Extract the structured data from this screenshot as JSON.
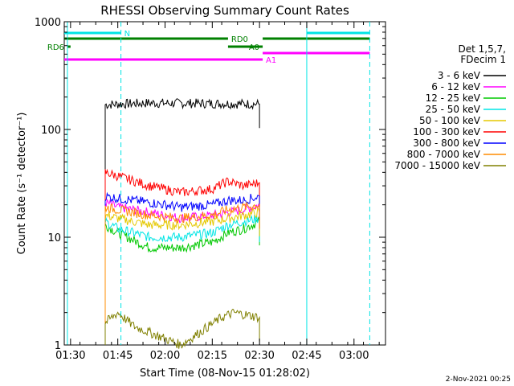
{
  "chart_data": {
    "type": "line",
    "title": "RHESSI Observing Summary Count Rates",
    "xlabel": "Start Time (08-Nov-15 01:28:02)",
    "ylabel": "Count Rate (s⁻¹ detector⁻¹)",
    "y_scale": "log",
    "ylim": [
      1,
      1000
    ],
    "xlim": [
      "01:28",
      "03:10"
    ],
    "x_ticks": [
      "01:30",
      "01:45",
      "02:00",
      "02:15",
      "02:30",
      "02:45",
      "03:00"
    ],
    "y_ticks": [
      "1",
      "10",
      "100",
      "1000"
    ],
    "grid": false,
    "legend_position": "right",
    "legend_title": [
      "Det 1,5,7,",
      "FDecim 1"
    ],
    "timestamp": "2-Nov-2021 00:25",
    "flag_bars": [
      {
        "label": "N",
        "color": "#00e5e5",
        "segments": [
          [
            "01:28",
            "01:46"
          ],
          [
            "02:45",
            "03:05"
          ]
        ]
      },
      {
        "label": "RD0",
        "color": "#008000",
        "segments": [
          [
            "01:28",
            "02:20"
          ],
          [
            "02:31",
            "03:05"
          ]
        ]
      },
      {
        "label": "RD6",
        "color": "#008000",
        "segments": [
          [
            "01:29",
            "01:30"
          ]
        ]
      },
      {
        "label": "A0",
        "color": "#008000",
        "segments": [
          [
            "02:20",
            "02:31"
          ]
        ]
      },
      {
        "label": "A1",
        "color": "#ff00ff",
        "segments": [
          [
            "01:28",
            "02:31"
          ]
        ]
      },
      {
        "label": "",
        "color": "#ff00ff",
        "segments": [
          [
            "02:31",
            "03:05"
          ]
        ]
      }
    ],
    "vertical_markers": [
      {
        "time": "01:29",
        "color": "#00e5e5",
        "style": "solid"
      },
      {
        "time": "01:46",
        "color": "#00e5e5",
        "style": "dashed"
      },
      {
        "time": "02:45",
        "color": "#00e5e5",
        "style": "solid"
      },
      {
        "time": "03:05",
        "color": "#00e5e5",
        "style": "dashed"
      }
    ],
    "series": [
      {
        "name": "3 - 6 keV",
        "color": "#000000",
        "x": [
          "01:41",
          "01:45",
          "01:55",
          "02:05",
          "02:15",
          "02:25",
          "02:30"
        ],
        "y": [
          170,
          172,
          176,
          175,
          174,
          173,
          172
        ]
      },
      {
        "name": "6 - 12 keV",
        "color": "#ff00ff",
        "x": [
          "01:41",
          "01:45",
          "01:55",
          "02:05",
          "02:15",
          "02:20",
          "02:25",
          "02:30"
        ],
        "y": [
          21,
          19,
          17,
          15,
          16,
          17,
          18,
          20
        ]
      },
      {
        "name": "12 - 25 keV",
        "color": "#00c800",
        "x": [
          "01:41",
          "01:45",
          "01:55",
          "02:05",
          "02:15",
          "02:20",
          "02:25",
          "02:30"
        ],
        "y": [
          13,
          11,
          8,
          8,
          9,
          11,
          12,
          14
        ]
      },
      {
        "name": "25 - 50 keV",
        "color": "#00e5e5",
        "x": [
          "01:41",
          "01:45",
          "01:55",
          "02:05",
          "02:15",
          "02:20",
          "02:25",
          "02:30"
        ],
        "y": [
          14,
          12,
          10,
          10,
          11,
          13,
          14,
          15
        ]
      },
      {
        "name": "50 - 100 keV",
        "color": "#e5c800",
        "x": [
          "01:41",
          "01:45",
          "01:55",
          "02:05",
          "02:15",
          "02:20",
          "02:25",
          "02:30"
        ],
        "y": [
          16,
          15,
          13,
          13,
          14,
          15,
          16,
          17
        ]
      },
      {
        "name": "100 - 300 keV",
        "color": "#ff0000",
        "x": [
          "01:41",
          "01:45",
          "01:55",
          "02:05",
          "02:15",
          "02:20",
          "02:25",
          "02:30"
        ],
        "y": [
          40,
          37,
          30,
          26,
          28,
          33,
          30,
          32
        ]
      },
      {
        "name": "300 - 800 keV",
        "color": "#0000ff",
        "x": [
          "01:41",
          "01:45",
          "01:55",
          "02:05",
          "02:15",
          "02:20",
          "02:25",
          "02:30"
        ],
        "y": [
          24,
          23,
          21,
          19,
          20,
          22,
          22,
          24
        ]
      },
      {
        "name": "800 - 7000 keV",
        "color": "#ff8c00",
        "x": [
          "01:41",
          "01:45",
          "01:55",
          "02:05",
          "02:15",
          "02:20",
          "02:25",
          "02:30"
        ],
        "y": [
          19,
          18,
          16,
          15,
          16,
          18,
          19,
          20
        ]
      },
      {
        "name": "7000 - 15000 keV",
        "color": "#808000",
        "x": [
          "01:41",
          "01:45",
          "01:50",
          "02:05",
          "02:18",
          "02:22",
          "02:26",
          "02:30"
        ],
        "y": [
          1.6,
          2,
          1.5,
          1,
          1.8,
          2,
          1.9,
          1.8
        ]
      }
    ]
  }
}
